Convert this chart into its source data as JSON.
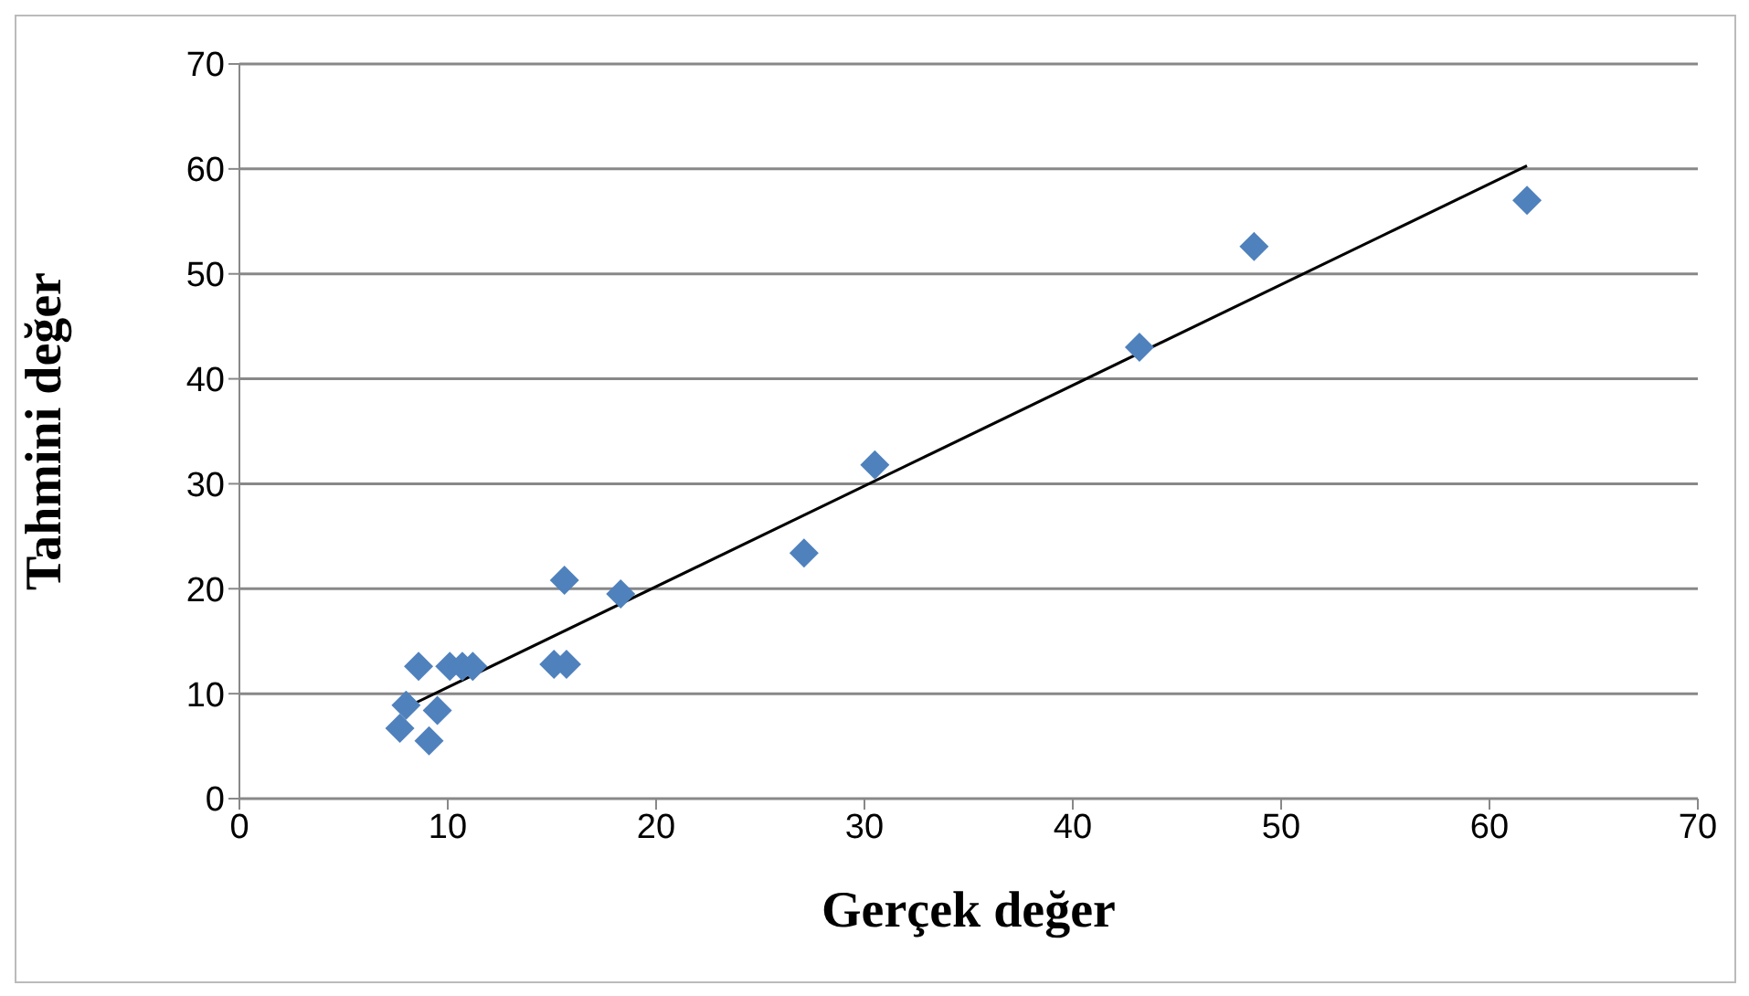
{
  "chart_data": {
    "type": "scatter",
    "xlabel": "Gerçek değer",
    "ylabel": "Tahmini değer",
    "xlim": [
      0,
      70
    ],
    "xticks": [
      0,
      10,
      20,
      30,
      40,
      50,
      60,
      70
    ],
    "ylim": [
      0,
      70
    ],
    "yticks": [
      0,
      10,
      20,
      30,
      40,
      50,
      60,
      70
    ],
    "grid": "y",
    "marker": "diamond",
    "series": [
      {
        "color": "#4f81bd",
        "x": [
          8.6,
          10.1,
          10.7,
          11.2,
          15.1,
          15.7,
          15.6,
          18.3,
          8.0,
          9.5,
          7.7,
          9.1,
          27.1,
          30.5,
          43.2,
          48.7,
          61.8
        ],
        "values": [
          12.6,
          12.6,
          12.6,
          12.6,
          12.8,
          12.8,
          20.8,
          19.5,
          8.9,
          8.4,
          6.7,
          5.5,
          23.4,
          31.8,
          43.0,
          52.6,
          57.0
        ]
      },
      {
        "type": "line",
        "color": "#000000",
        "x": [
          7.7,
          61.8
        ],
        "values": [
          8.4,
          60.3
        ],
        "marker": "none"
      }
    ]
  }
}
